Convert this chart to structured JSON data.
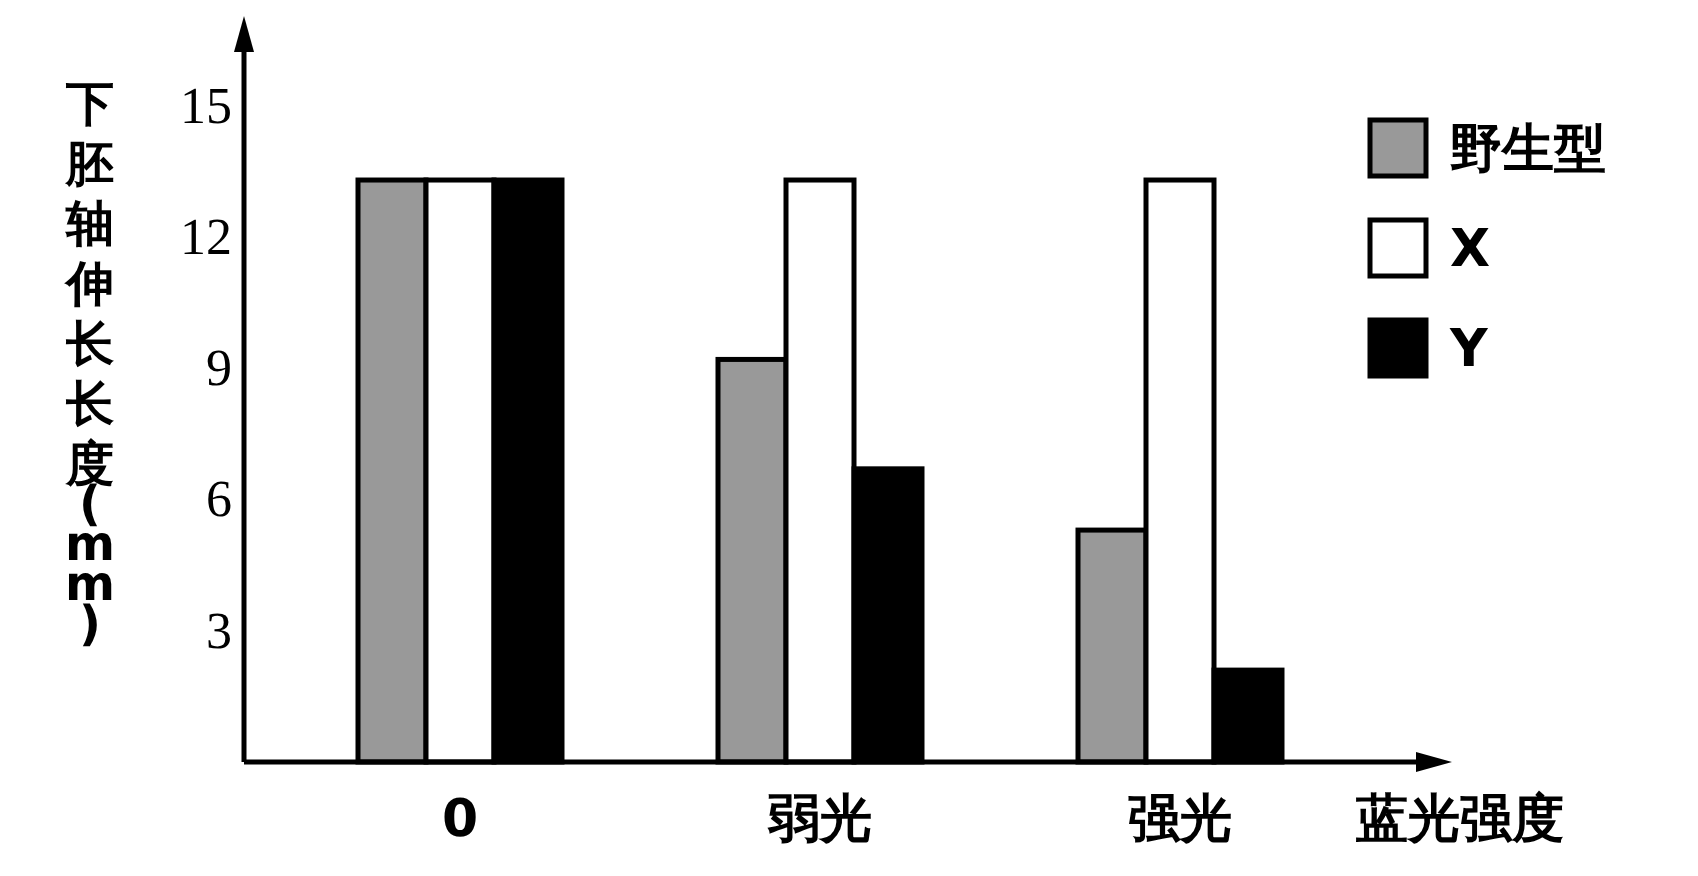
{
  "chart_data": {
    "type": "bar",
    "categories": [
      "0",
      "弱光",
      "强光"
    ],
    "series": [
      {
        "name": "野生型",
        "color": "#999999",
        "values": [
          13.3,
          9.2,
          5.3
        ]
      },
      {
        "name": "X",
        "color": "#ffffff",
        "values": [
          13.3,
          13.3,
          13.3
        ]
      },
      {
        "name": "Y",
        "color": "#000000",
        "values": [
          13.3,
          6.7,
          2.1
        ]
      }
    ],
    "xlabel": "蓝光强度",
    "ylabel": "下胚轴伸长长度(mm)",
    "ylim": [
      0,
      16.5
    ],
    "yticks": [
      3,
      6,
      9,
      12,
      15
    ],
    "legend": "top right",
    "grid": false
  }
}
